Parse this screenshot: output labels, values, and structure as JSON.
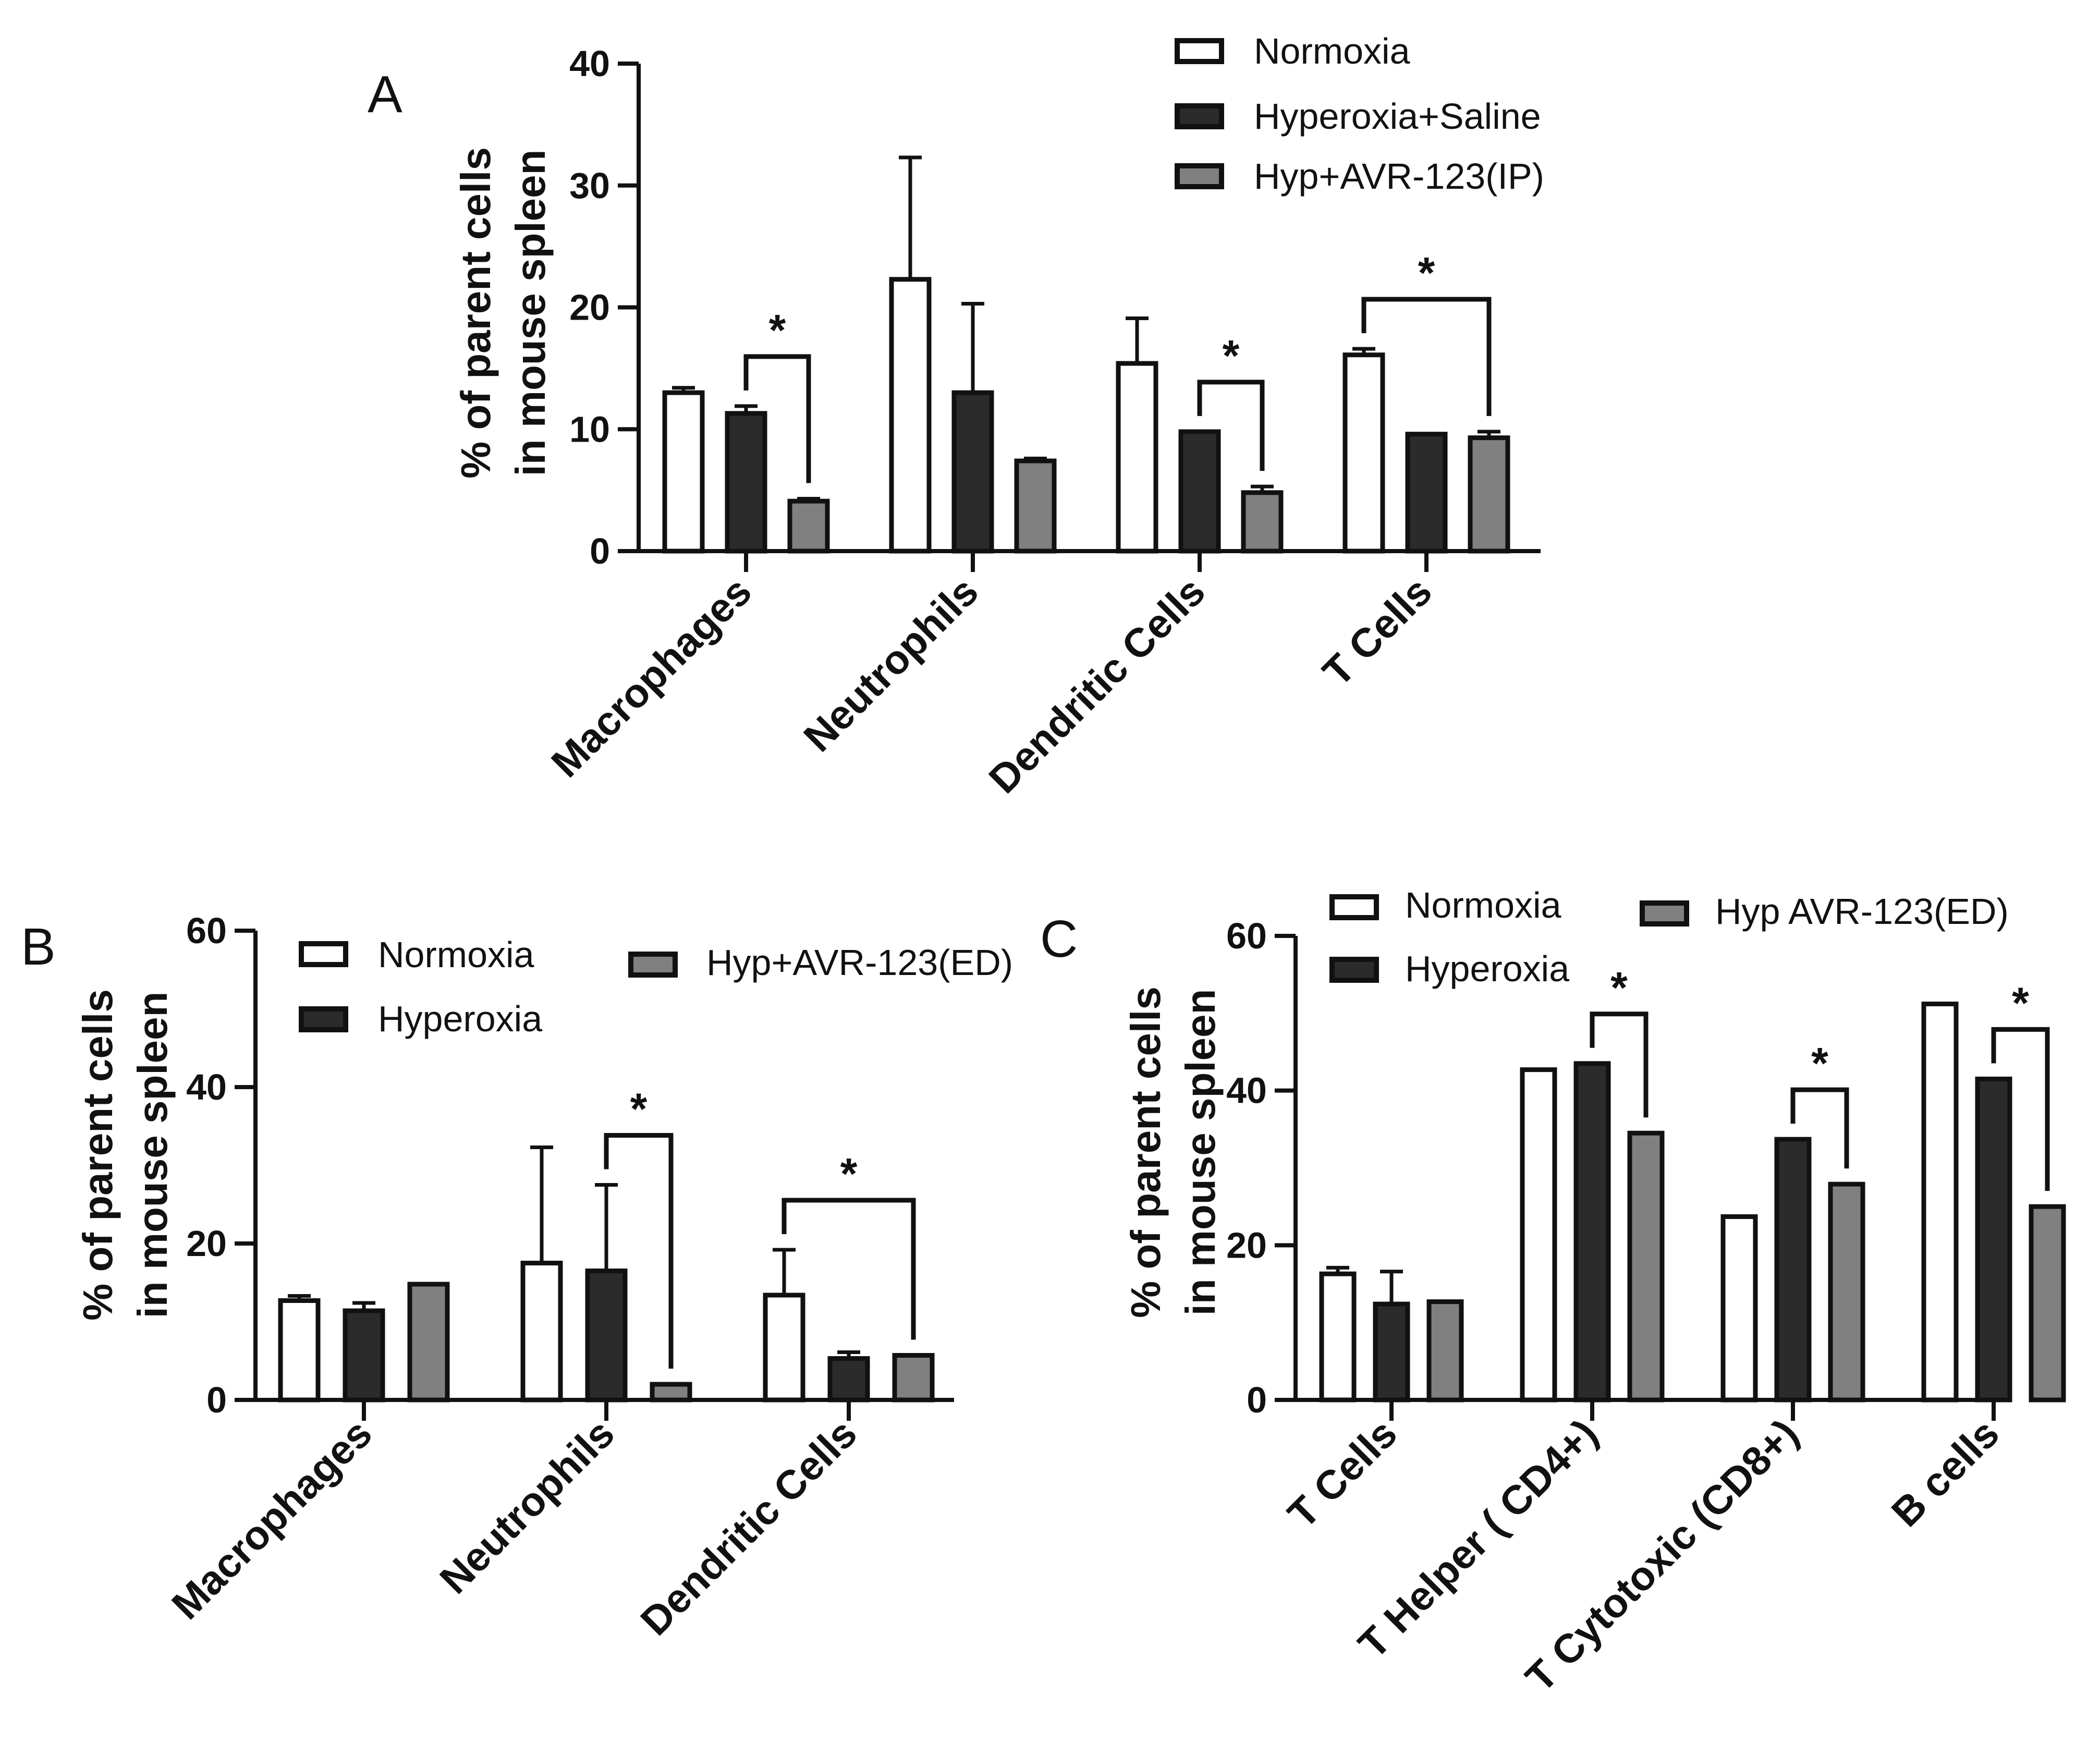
{
  "colors": {
    "normoxia": "#ffffff",
    "hyperoxia": "#2b2b2b",
    "treated": "#808080",
    "stroke": "#111111"
  },
  "chart_data": [
    {
      "panel": "A",
      "type": "bar",
      "ylabel_line1": "% of parent cells",
      "ylabel_line2": "in mouse spleen",
      "ylim": [
        0,
        40
      ],
      "yticks": [
        "0",
        "10",
        "20",
        "30",
        "40"
      ],
      "categories": [
        "Macrophages",
        "Neutrophils",
        "Dendritic Cells",
        "T Cells"
      ],
      "series": [
        {
          "name": "Normoxia",
          "values": [
            13.0,
            22.3,
            15.4,
            16.1
          ],
          "errors": [
            0.4,
            10.0,
            3.7,
            0.5
          ]
        },
        {
          "name": "Hyperoxia+Saline",
          "values": [
            11.3,
            13.0,
            9.8,
            9.6
          ],
          "errors": [
            0.6,
            7.3,
            0.0,
            0.0
          ]
        },
        {
          "name": "Hyp+AVR-123(IP)",
          "values": [
            4.1,
            7.4,
            4.8,
            9.3
          ],
          "errors": [
            0.2,
            0.2,
            0.5,
            0.5
          ]
        }
      ],
      "significance": [
        {
          "category": 0,
          "from": 1,
          "to": 2,
          "label": "*"
        },
        {
          "category": 2,
          "from": 1,
          "to": 2,
          "label": "*"
        },
        {
          "category": 3,
          "from": 0,
          "to": 2,
          "label": "*"
        }
      ]
    },
    {
      "panel": "B",
      "type": "bar",
      "ylabel_line1": "% of parent cells",
      "ylabel_line2": "in mouse spleen",
      "ylim": [
        0,
        60
      ],
      "yticks": [
        "0",
        "20",
        "40",
        "60"
      ],
      "categories": [
        "Macrophages",
        "Neutrophils",
        "Dendritic Cells"
      ],
      "series": [
        {
          "name": "Normoxia",
          "values": [
            12.7,
            17.5,
            13.4
          ],
          "errors": [
            0.6,
            14.8,
            5.8
          ]
        },
        {
          "name": "Hyperoxia",
          "values": [
            11.4,
            16.5,
            5.3
          ],
          "errors": [
            1.0,
            11.0,
            0.8
          ]
        },
        {
          "name": "Hyp+AVR-123(ED)",
          "values": [
            14.8,
            2.0,
            5.7
          ],
          "errors": [
            0.0,
            0.0,
            0.0
          ]
        }
      ],
      "significance": [
        {
          "category": 1,
          "from": 1,
          "to": 2,
          "label": "*"
        },
        {
          "category": 2,
          "from": 0,
          "to": 2,
          "label": "*"
        }
      ]
    },
    {
      "panel": "C",
      "type": "bar",
      "ylabel_line1": "% of parent cells",
      "ylabel_line2": "in mouse spleen",
      "ylim": [
        0,
        60
      ],
      "yticks": [
        "0",
        "20",
        "40",
        "60"
      ],
      "categories": [
        "T Cells",
        "T Helper ( CD4+)",
        "T Cytotoxic (CD8+)",
        "B cells"
      ],
      "series": [
        {
          "name": "Normoxia",
          "values": [
            16.3,
            42.7,
            23.7,
            51.2
          ],
          "errors": [
            0.8,
            0.0,
            0.0,
            0.0
          ]
        },
        {
          "name": "Hyperoxia",
          "values": [
            12.4,
            43.5,
            33.7,
            41.5
          ],
          "errors": [
            4.2,
            0.0,
            0.0,
            0.0
          ]
        },
        {
          "name": "Hyp AVR-123(ED)",
          "values": [
            12.7,
            34.5,
            27.9,
            25.0
          ],
          "errors": [
            0.0,
            0.0,
            0.0,
            0.0
          ]
        }
      ],
      "significance": [
        {
          "category": 1,
          "from": 1,
          "to": 2,
          "label": "*"
        },
        {
          "category": 2,
          "from": 1,
          "to": 2,
          "label": "*"
        },
        {
          "category": 3,
          "from": 1,
          "to": 2,
          "label": "*"
        }
      ]
    }
  ]
}
